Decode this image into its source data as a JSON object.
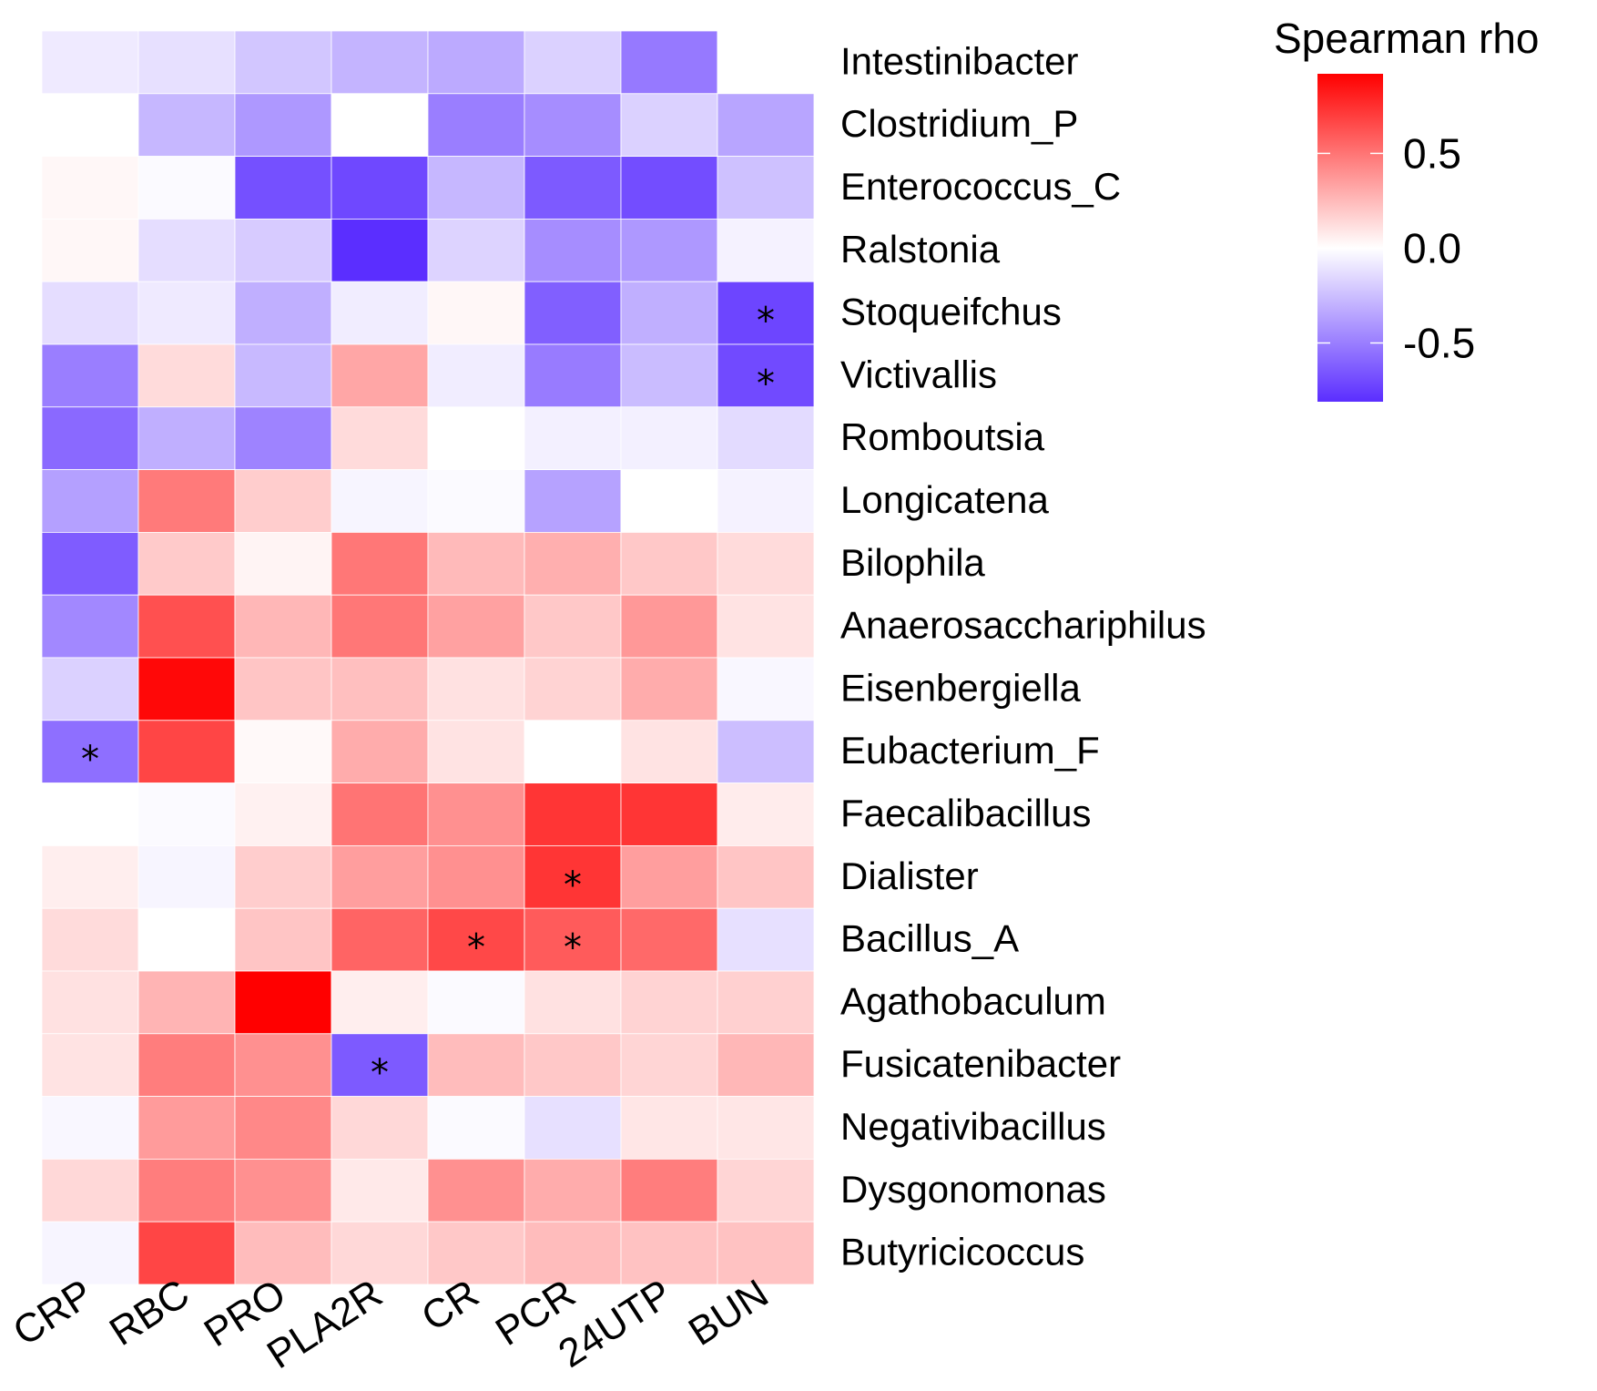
{
  "chart_data": {
    "type": "heatmap",
    "title": "",
    "xlabel": "",
    "ylabel": "",
    "columns": [
      "CRP",
      "RBC",
      "PRO",
      "PLA2R",
      "CR",
      "PCR",
      "24UTP",
      "BUN"
    ],
    "rows": [
      "Intestinibacter",
      "Clostridium_P",
      "Enterococcus_C",
      "Ralstonia",
      "Stoqueifchus",
      "Victivallis",
      "Romboutsia",
      "Longicatena",
      "Bilophila",
      "Anaerosacchariphilus",
      "Eisenbergiella",
      "Eubacterium_F",
      "Faecalibacillus",
      "Dialister",
      "Bacillus_A",
      "Agathobaculum",
      "Fusicatenibacter",
      "Negativibacillus",
      "Dysgonomonas",
      "Butyricicoccus"
    ],
    "values": [
      [
        -0.08,
        -0.12,
        -0.22,
        -0.29,
        -0.33,
        -0.18,
        -0.52,
        null
      ],
      [
        0.0,
        -0.28,
        -0.4,
        0.0,
        -0.5,
        -0.44,
        -0.18,
        -0.35
      ],
      [
        0.03,
        -0.02,
        -0.68,
        -0.71,
        -0.28,
        -0.64,
        -0.69,
        -0.24
      ],
      [
        0.03,
        -0.13,
        -0.2,
        -0.81,
        -0.17,
        -0.44,
        -0.4,
        -0.05
      ],
      [
        -0.13,
        -0.08,
        -0.31,
        -0.07,
        0.03,
        -0.62,
        -0.31,
        -0.72
      ],
      [
        -0.5,
        0.13,
        -0.27,
        0.32,
        -0.07,
        -0.51,
        -0.26,
        -0.7
      ],
      [
        -0.58,
        -0.31,
        -0.48,
        0.13,
        0.0,
        -0.06,
        -0.06,
        -0.14
      ],
      [
        -0.37,
        0.48,
        0.18,
        -0.04,
        -0.02,
        -0.36,
        0.0,
        -0.05
      ],
      [
        -0.63,
        0.19,
        0.04,
        0.49,
        0.25,
        0.29,
        0.2,
        0.13
      ],
      [
        -0.46,
        0.63,
        0.26,
        0.49,
        0.34,
        0.2,
        0.37,
        0.1
      ],
      [
        -0.18,
        0.89,
        0.21,
        0.23,
        0.11,
        0.16,
        0.3,
        -0.03
      ],
      [
        -0.56,
        0.67,
        0.02,
        0.3,
        0.1,
        0.0,
        0.1,
        -0.25
      ],
      [
        0.0,
        -0.02,
        0.05,
        0.5,
        0.4,
        0.73,
        0.73,
        0.07
      ],
      [
        0.06,
        -0.04,
        0.18,
        0.35,
        0.4,
        0.73,
        0.35,
        0.21
      ],
      [
        0.13,
        0.0,
        0.21,
        0.56,
        0.66,
        0.59,
        0.54,
        -0.12
      ],
      [
        0.11,
        0.27,
        0.92,
        0.06,
        -0.02,
        0.11,
        0.16,
        0.17
      ],
      [
        0.1,
        0.47,
        0.4,
        -0.64,
        0.24,
        0.2,
        0.15,
        0.26
      ],
      [
        -0.03,
        0.36,
        0.43,
        0.14,
        -0.02,
        -0.12,
        0.09,
        0.09
      ],
      [
        0.14,
        0.47,
        0.4,
        0.08,
        0.4,
        0.3,
        0.47,
        0.15
      ],
      [
        -0.04,
        0.67,
        0.24,
        0.14,
        0.2,
        0.24,
        0.22,
        0.22
      ]
    ],
    "significance_marker": "*",
    "significant_cells": [
      {
        "row": "Stoqueifchus",
        "column": "BUN"
      },
      {
        "row": "Victivallis",
        "column": "BUN"
      },
      {
        "row": "Eubacterium_F",
        "column": "CRP"
      },
      {
        "row": "Dialister",
        "column": "PCR"
      },
      {
        "row": "Bacillus_A",
        "column": "CR"
      },
      {
        "row": "Bacillus_A",
        "column": "PCR"
      },
      {
        "row": "Fusicatenibacter",
        "column": "PLA2R"
      }
    ],
    "colorbar": {
      "title": "Spearman rho",
      "range": [
        -0.81,
        0.92
      ],
      "ticks": [
        0.5,
        0.0,
        -0.5
      ],
      "tick_labels": [
        "0.5",
        "0.0",
        "-0.5"
      ],
      "low_color": "#5B2EFF",
      "mid_color": "#FFFFFF",
      "high_color": "#FF0000",
      "na_color": "#FFFFFF"
    },
    "legend_position": "top-right",
    "grid": false
  }
}
